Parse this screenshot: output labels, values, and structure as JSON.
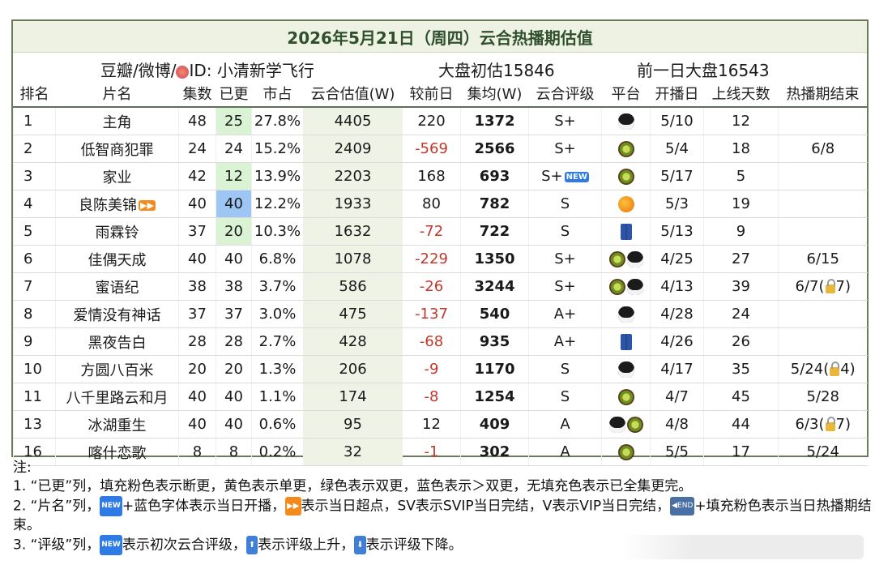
{
  "header": {
    "title": "2026年5月21日（周四）云合热播期估值",
    "source": "豆瓣/微博/",
    "id_label": "ID: 小清新学飞行",
    "market_initial": "大盘初估15846",
    "market_prev": "前一日大盘16543"
  },
  "columns": [
    "排名",
    "片名",
    "集数",
    "已更",
    "市占",
    "云合估值(W)",
    "较前日",
    "集均(W)",
    "云合评级",
    "平台",
    "开播日",
    "上线天数",
    "热播期结束"
  ],
  "rows": [
    {
      "rank": "1",
      "name": "主角",
      "name_mark": "",
      "eps": "48",
      "updated": "25",
      "upd_fill": "green",
      "share": "27.8%",
      "est": "4405",
      "delta": "220",
      "neg": false,
      "avg": "1372",
      "grade": "S+",
      "grade_new": false,
      "platforms": [
        "penguin-icon"
      ],
      "start": "5/10",
      "days": "12",
      "end": "",
      "end_lock": ""
    },
    {
      "rank": "2",
      "name": "低智商犯罪",
      "name_mark": "",
      "eps": "24",
      "updated": "24",
      "upd_fill": "",
      "share": "15.2%",
      "est": "2409",
      "delta": "-569",
      "neg": true,
      "avg": "2566",
      "grade": "S+",
      "grade_new": false,
      "platforms": [
        "kiwi-icon"
      ],
      "start": "5/4",
      "days": "18",
      "end": "6/8",
      "end_lock": ""
    },
    {
      "rank": "3",
      "name": "家业",
      "name_mark": "",
      "eps": "42",
      "updated": "12",
      "upd_fill": "green",
      "share": "13.9%",
      "est": "2203",
      "delta": "168",
      "neg": false,
      "avg": "693",
      "grade": "S+",
      "grade_new": true,
      "platforms": [
        "kiwi-icon"
      ],
      "start": "5/17",
      "days": "5",
      "end": "",
      "end_lock": ""
    },
    {
      "rank": "4",
      "name": "良陈美锦",
      "name_mark": "ff",
      "eps": "40",
      "updated": "40",
      "upd_fill": "blue",
      "share": "12.2%",
      "est": "1933",
      "delta": "80",
      "neg": false,
      "avg": "782",
      "grade": "S",
      "grade_new": false,
      "platforms": [
        "mango-icon"
      ],
      "start": "5/3",
      "days": "19",
      "end": "",
      "end_lock": ""
    },
    {
      "rank": "5",
      "name": "雨霖铃",
      "name_mark": "",
      "eps": "37",
      "updated": "20",
      "upd_fill": "green",
      "share": "10.3%",
      "est": "1632",
      "delta": "-72",
      "neg": true,
      "avg": "722",
      "grade": "S",
      "grade_new": false,
      "platforms": [
        "jeans-icon"
      ],
      "start": "5/13",
      "days": "9",
      "end": "",
      "end_lock": ""
    },
    {
      "rank": "6",
      "name": "佳偶天成",
      "name_mark": "",
      "eps": "40",
      "updated": "40",
      "upd_fill": "",
      "share": "6.8%",
      "est": "1078",
      "delta": "-229",
      "neg": true,
      "avg": "1350",
      "grade": "S+",
      "grade_new": false,
      "platforms": [
        "kiwi-icon",
        "penguin-icon"
      ],
      "start": "4/25",
      "days": "27",
      "end": "6/15",
      "end_lock": ""
    },
    {
      "rank": "7",
      "name": "蜜语纪",
      "name_mark": "",
      "eps": "38",
      "updated": "38",
      "upd_fill": "",
      "share": "3.7%",
      "est": "586",
      "delta": "-26",
      "neg": true,
      "avg": "3244",
      "grade": "S+",
      "grade_new": false,
      "platforms": [
        "kiwi-icon",
        "penguin-icon"
      ],
      "start": "4/13",
      "days": "39",
      "end": "6/7(",
      "end_lock": "7)"
    },
    {
      "rank": "8",
      "name": "爱情没有神话",
      "name_mark": "",
      "eps": "37",
      "updated": "37",
      "upd_fill": "",
      "share": "3.0%",
      "est": "475",
      "delta": "-137",
      "neg": true,
      "avg": "540",
      "grade": "A+",
      "grade_new": false,
      "platforms": [
        "penguin-icon"
      ],
      "start": "4/28",
      "days": "24",
      "end": "",
      "end_lock": ""
    },
    {
      "rank": "9",
      "name": "黑夜告白",
      "name_mark": "",
      "eps": "28",
      "updated": "28",
      "upd_fill": "",
      "share": "2.7%",
      "est": "428",
      "delta": "-68",
      "neg": true,
      "avg": "935",
      "grade": "A+",
      "grade_new": false,
      "platforms": [
        "jeans-icon"
      ],
      "start": "4/26",
      "days": "26",
      "end": "",
      "end_lock": ""
    },
    {
      "rank": "10",
      "name": "方圆八百米",
      "name_mark": "",
      "eps": "20",
      "updated": "20",
      "upd_fill": "",
      "share": "1.3%",
      "est": "206",
      "delta": "-9",
      "neg": true,
      "avg": "1170",
      "grade": "S",
      "grade_new": false,
      "platforms": [
        "penguin-icon"
      ],
      "start": "4/17",
      "days": "35",
      "end": "5/24(",
      "end_lock": "4)"
    },
    {
      "rank": "11",
      "name": "八千里路云和月",
      "name_mark": "",
      "eps": "40",
      "updated": "40",
      "upd_fill": "",
      "share": "1.1%",
      "est": "174",
      "delta": "-8",
      "neg": true,
      "avg": "1254",
      "grade": "S",
      "grade_new": false,
      "platforms": [
        "kiwi-icon"
      ],
      "start": "4/7",
      "days": "45",
      "end": "5/28",
      "end_lock": ""
    },
    {
      "rank": "13",
      "name": "冰湖重生",
      "name_mark": "",
      "eps": "40",
      "updated": "40",
      "upd_fill": "",
      "share": "0.6%",
      "est": "95",
      "delta": "12",
      "neg": false,
      "avg": "409",
      "grade": "A",
      "grade_new": false,
      "platforms": [
        "penguin-icon",
        "kiwi-icon"
      ],
      "start": "4/8",
      "days": "44",
      "end": "6/3(",
      "end_lock": "7)"
    },
    {
      "rank": "16",
      "name": "喀什恋歌",
      "name_mark": "",
      "eps": "8",
      "updated": "8",
      "upd_fill": "",
      "share": "0.2%",
      "est": "32",
      "delta": "-1",
      "neg": true,
      "avg": "302",
      "grade": "A",
      "grade_new": false,
      "platforms": [
        "kiwi-icon"
      ],
      "start": "5/5",
      "days": "17",
      "end": "5/24",
      "end_lock": ""
    }
  ],
  "notes": {
    "heading": "注:",
    "n1": "1. “已更”列，填充粉色表示断更，黄色表示单更，绿色表示双更，蓝色表示＞双更，无填充色表示已全集更完。",
    "n2a": "2. “片名”列，",
    "n2b": "+蓝色字体表示当日开播，",
    "n2c": "表示当日超点，SV表示SVIP当日完结，V表示VIP当日完结，",
    "n2d": "+填充粉色表示当日热播期结束。",
    "n3a": "3. “评级”列，",
    "n3b": "表示初次云合评级，",
    "n3c": "表示评级上升，",
    "n3d": "表示评级下降。"
  },
  "colors": {
    "negative": "#c0392b",
    "estimate_fill": "#eef3e6",
    "green_fill": "#d9f3d4",
    "blue_fill": "#9ec6f5",
    "border": "#6b7a5a"
  }
}
